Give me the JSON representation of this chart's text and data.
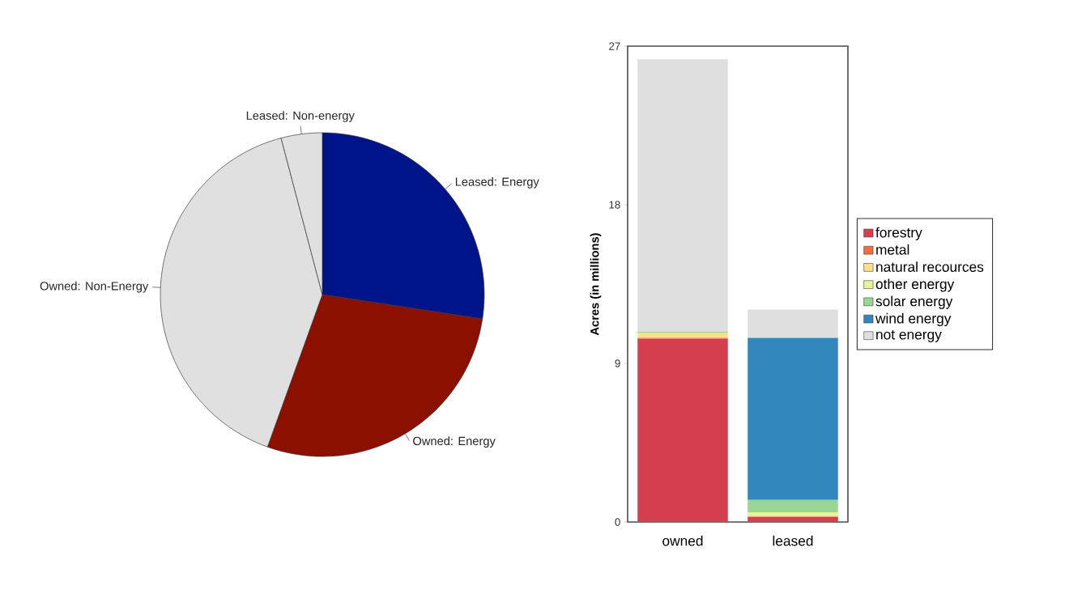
{
  "chart_data": [
    {
      "type": "pie",
      "categories": [
        "Leased: Energy",
        "Owned: Energy",
        "Owned: Non-Energy",
        "Leased: Non-energy"
      ],
      "values": [
        27.4,
        28.1,
        40.4,
        4.1
      ],
      "colors": [
        "#001489",
        "#8b1000",
        "#e0e0e0",
        "#e0e0e0"
      ]
    },
    {
      "type": "bar",
      "stacked": true,
      "categories": [
        "owned",
        "leased"
      ],
      "ylabel": "Acres (in millions)",
      "ylim": [
        0,
        27
      ],
      "yticks": [
        0,
        9,
        18,
        27
      ],
      "legend": "right",
      "series": [
        {
          "name": "forestry",
          "color": "#d53e4f",
          "values": [
            10.4,
            0.3
          ]
        },
        {
          "name": "metal",
          "color": "#f46d43",
          "values": [
            0.05,
            0
          ]
        },
        {
          "name": "natural recources",
          "color": "#fee08b",
          "values": [
            0.3,
            0.1
          ]
        },
        {
          "name": "other energy",
          "color": "#e6f598",
          "values": [
            0,
            0.15
          ]
        },
        {
          "name": "solar energy",
          "color": "#99d594",
          "values": [
            0.05,
            0.7
          ]
        },
        {
          "name": "wind energy",
          "color": "#3288bd",
          "values": [
            0,
            9.2
          ]
        },
        {
          "name": "not energy",
          "color": "#dfdfdf",
          "values": [
            15.45,
            1.6
          ]
        }
      ]
    }
  ]
}
